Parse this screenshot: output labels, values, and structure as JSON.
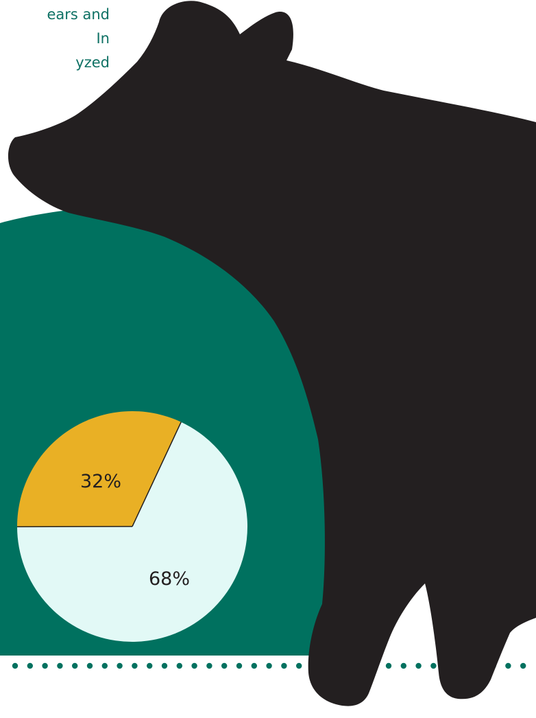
{
  "intro_text": [
    "ears and",
    "In",
    "yzed"
  ],
  "colors": {
    "background": "#ffffff",
    "panel": "#00715f",
    "bear": "#231f20",
    "accent": "#e9b025",
    "light": "#e2f9f6",
    "text": "#0e7164",
    "dots": "#00715f"
  },
  "icons": [
    "bear-silhouette",
    "dotted-divider"
  ],
  "chart_data": {
    "type": "pie",
    "slices": [
      {
        "label": "32%",
        "value": 32,
        "color": "#e9b025"
      },
      {
        "label": "68%",
        "value": 68,
        "color": "#e2f9f6"
      }
    ],
    "legend": "none"
  }
}
